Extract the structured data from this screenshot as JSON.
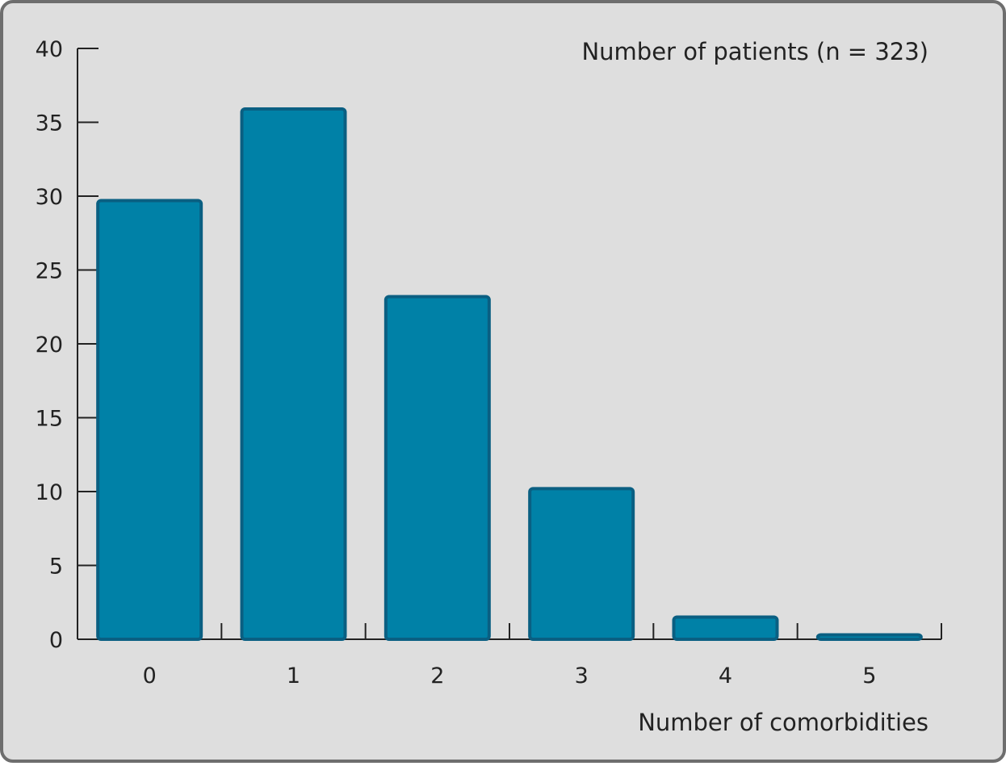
{
  "colors": {
    "background": "#dedede",
    "frame_border": "#6e6e6e",
    "bar_fill": "#0081a7",
    "bar_stroke": "#0a5f82",
    "axis": "#222222"
  },
  "chart_data": {
    "type": "bar",
    "categories": [
      "0",
      "1",
      "2",
      "3",
      "4",
      "5"
    ],
    "values": [
      29.7,
      35.9,
      23.2,
      10.2,
      1.5,
      0.3
    ],
    "ylabel": "Number of patients (n = 323)",
    "xlabel": "Number of comorbidities",
    "ylim": [
      0,
      40
    ],
    "yticks": [
      0,
      5,
      10,
      15,
      20,
      25,
      30,
      35,
      40
    ],
    "grid": false
  }
}
